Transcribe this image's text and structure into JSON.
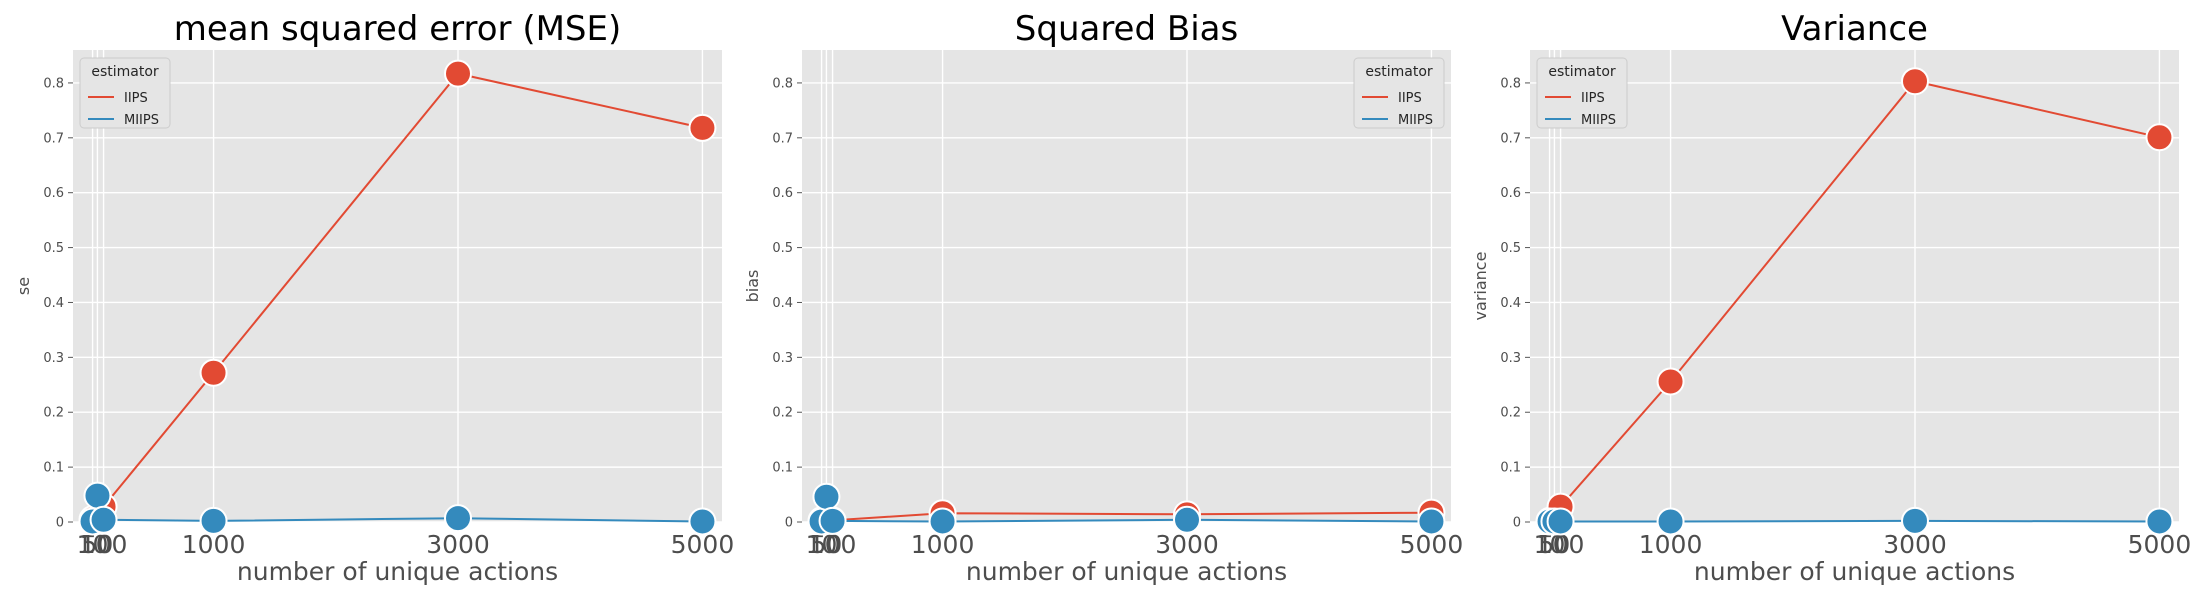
{
  "chart_data": [
    {
      "type": "line",
      "title": "mean squared error (MSE)",
      "xlabel": "number of unique actions",
      "ylabel": "se",
      "x": [
        10,
        50,
        100,
        1000,
        3000,
        5000
      ],
      "xticks": [
        "10",
        "50",
        "100",
        "1000",
        "3000",
        "5000"
      ],
      "xlim": [
        -150,
        5160
      ],
      "ylim": [
        0,
        0.86
      ],
      "yticks": [
        0.0,
        0.1,
        0.2,
        0.3,
        0.4,
        0.5,
        0.6,
        0.7,
        0.8
      ],
      "grid": true,
      "legend": {
        "title": "estimator",
        "position": "top-left"
      },
      "series": [
        {
          "name": "IIPS",
          "color": "#E24A33",
          "values": [
            0.005,
            0.004,
            0.028,
            0.272,
            0.817,
            0.718
          ]
        },
        {
          "name": "MIIPS",
          "color": "#348ABD",
          "values": [
            0.001,
            0.048,
            0.004,
            0.002,
            0.007,
            0.001
          ]
        }
      ]
    },
    {
      "type": "line",
      "title": "Squared Bias",
      "xlabel": "number of unique actions",
      "ylabel": "bias",
      "x": [
        10,
        50,
        100,
        1000,
        3000,
        5000
      ],
      "xticks": [
        "10",
        "50",
        "100",
        "1000",
        "3000",
        "5000"
      ],
      "xlim": [
        -150,
        5160
      ],
      "ylim": [
        0,
        0.86
      ],
      "yticks": [
        0.0,
        0.1,
        0.2,
        0.3,
        0.4,
        0.5,
        0.6,
        0.7,
        0.8
      ],
      "grid": true,
      "legend": {
        "title": "estimator",
        "position": "top-right"
      },
      "series": [
        {
          "name": "IIPS",
          "color": "#E24A33",
          "values": [
            0.003,
            0.002,
            0.003,
            0.016,
            0.014,
            0.017
          ]
        },
        {
          "name": "MIIPS",
          "color": "#348ABD",
          "values": [
            0.001,
            0.046,
            0.002,
            0.001,
            0.004,
            0.001
          ]
        }
      ]
    },
    {
      "type": "line",
      "title": "Variance",
      "xlabel": "number of unique actions",
      "ylabel": "variance",
      "x": [
        10,
        50,
        100,
        1000,
        3000,
        5000
      ],
      "xticks": [
        "10",
        "50",
        "100",
        "1000",
        "3000",
        "5000"
      ],
      "xlim": [
        -150,
        5160
      ],
      "ylim": [
        0,
        0.86
      ],
      "yticks": [
        0.0,
        0.1,
        0.2,
        0.3,
        0.4,
        0.5,
        0.6,
        0.7,
        0.8
      ],
      "grid": true,
      "legend": {
        "title": "estimator",
        "position": "top-left"
      },
      "series": [
        {
          "name": "IIPS",
          "color": "#E24A33",
          "values": [
            0.002,
            0.002,
            0.028,
            0.256,
            0.803,
            0.701
          ]
        },
        {
          "name": "MIIPS",
          "color": "#348ABD",
          "values": [
            0.001,
            0.001,
            0.001,
            0.001,
            0.002,
            0.001
          ]
        }
      ]
    }
  ]
}
